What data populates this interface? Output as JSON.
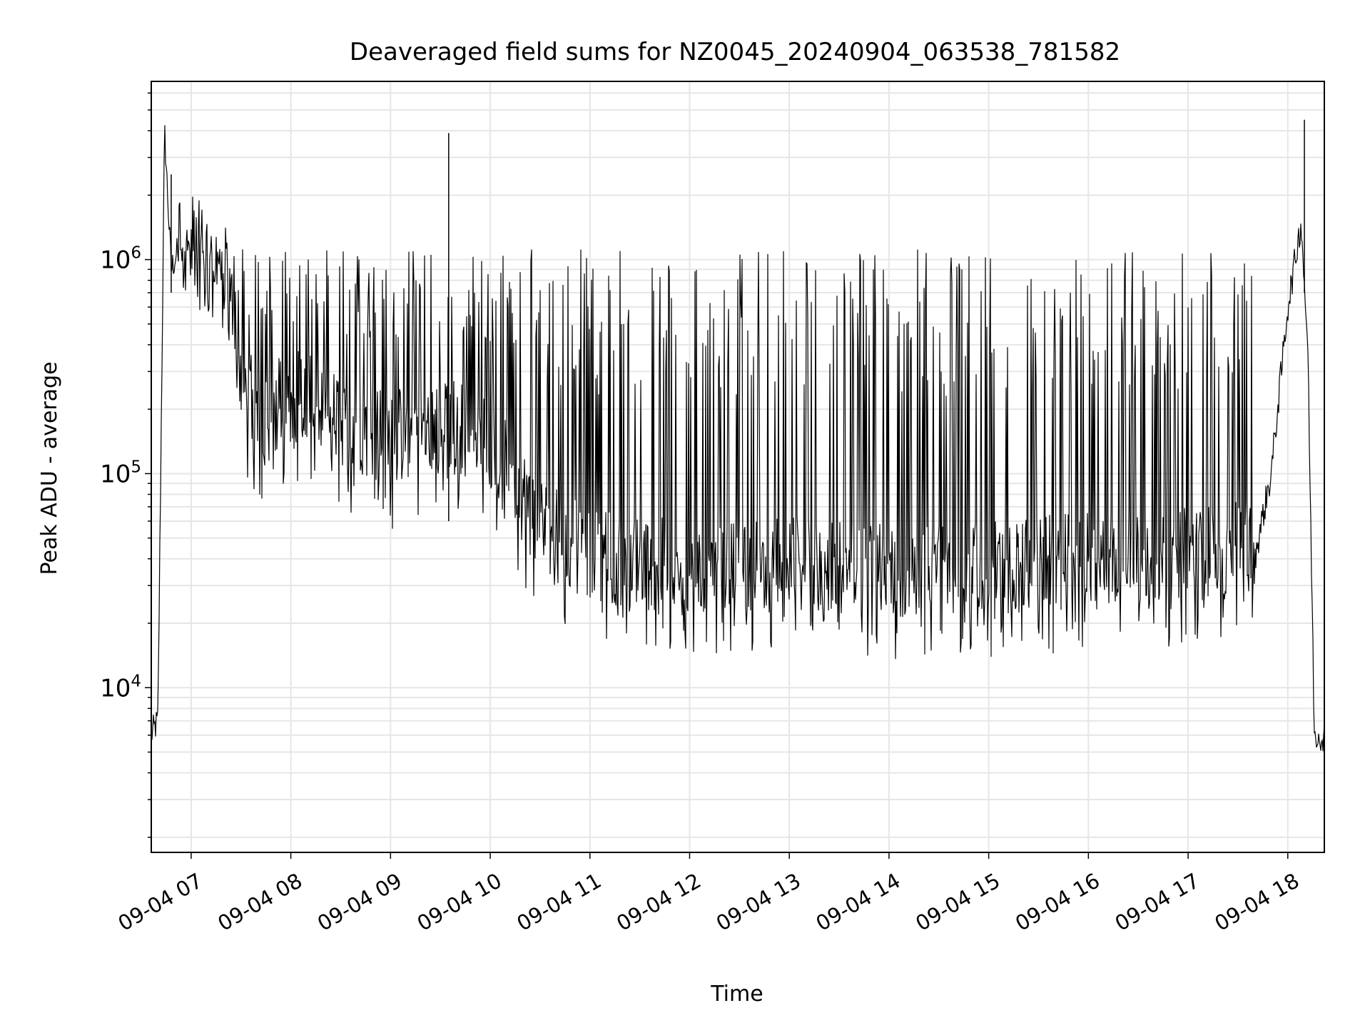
{
  "chart_data": {
    "type": "line",
    "title": "Deaveraged field sums for NZ0045_20240904_063538_781582",
    "xlabel": "Time",
    "ylabel": "Peak ADU - average",
    "xlim": [
      "2024-09-04T06:36",
      "2024-09-04T18:22"
    ],
    "ylim": [
      1700,
      6800000
    ],
    "yscale": "log",
    "grid": true,
    "x_ticks": [
      "09-04 07",
      "09-04 08",
      "09-04 09",
      "09-04 10",
      "09-04 11",
      "09-04 12",
      "09-04 13",
      "09-04 14",
      "09-04 15",
      "09-04 16",
      "09-04 17",
      "09-04 18"
    ],
    "y_ticks": [
      {
        "base": "10",
        "exp": "4"
      },
      {
        "base": "10",
        "exp": "5"
      },
      {
        "base": "10",
        "exp": "6"
      }
    ],
    "series": [
      {
        "color": "#000000",
        "x": [
          "2024-09-04T06:36",
          "2024-09-04T06:40",
          "2024-09-04T06:44",
          "2024-09-04T06:48",
          "2024-09-04T06:52",
          "2024-09-04T07:00",
          "2024-09-04T07:10",
          "2024-09-04T07:20",
          "2024-09-04T07:30",
          "2024-09-04T07:40",
          "2024-09-04T08:00",
          "2024-09-04T08:30",
          "2024-09-04T09:00",
          "2024-09-04T09:30",
          "2024-09-04T10:00",
          "2024-09-04T10:30",
          "2024-09-04T11:00",
          "2024-09-04T12:00",
          "2024-09-04T13:00",
          "2024-09-04T14:00",
          "2024-09-04T15:00",
          "2024-09-04T16:00",
          "2024-09-04T17:00",
          "2024-09-04T17:40",
          "2024-09-04T17:50",
          "2024-09-04T18:00",
          "2024-09-04T18:08",
          "2024-09-04T18:12",
          "2024-09-04T18:16",
          "2024-09-04T18:22"
        ],
        "y": [
          6000,
          7000,
          4000000,
          900000,
          1100000,
          1000000,
          900000,
          800000,
          250000,
          150000,
          200000,
          150000,
          120000,
          150000,
          120000,
          50000,
          35000,
          30000,
          32000,
          30000,
          31000,
          33000,
          35000,
          40000,
          100000,
          600000,
          1500000,
          400000,
          6000,
          6000
        ],
        "spike_peaks": [
          2500000,
          3900000,
          4500000
        ]
      }
    ]
  }
}
